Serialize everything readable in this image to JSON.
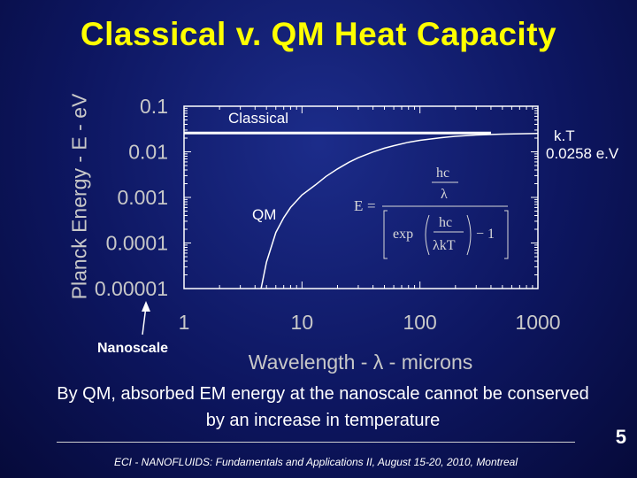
{
  "slide": {
    "title": "Classical v. QM Heat Capacity",
    "statement": "By QM, absorbed EM energy at the nanoscale cannot be conserved by an increase in temperature",
    "footer": "ECI - NANOFLUIDS: Fundamentals and Applications II, August 15-20, 2010, Montreal",
    "page_number": "5"
  },
  "colors": {
    "background": "#0d1660",
    "title": "#ffff00",
    "axis_text": "#c8c8c8",
    "curve": "#ffffff"
  },
  "chart_data": {
    "type": "line",
    "xlabel": "Wavelength - λ - microns",
    "ylabel": "Planck Energy - E - eV",
    "xscale": "log",
    "yscale": "log",
    "xlim": [
      1,
      1000
    ],
    "ylim": [
      1e-05,
      0.1
    ],
    "x_ticks": [
      "1",
      "10",
      "100",
      "1000"
    ],
    "y_ticks": [
      "0.1",
      "0.01",
      "0.001",
      "0.0001",
      "0.00001"
    ],
    "grid": false,
    "series": [
      {
        "name": "Classical",
        "x": [
          1,
          400
        ],
        "y": [
          0.0258,
          0.0258
        ]
      },
      {
        "name": "QM",
        "x": [
          4.5,
          5,
          6,
          7,
          8,
          10,
          13,
          16,
          20,
          25,
          30,
          40,
          50,
          60,
          80,
          100,
          150,
          200,
          300,
          500,
          1000
        ],
        "y": [
          1e-05,
          3.8e-05,
          0.00017,
          0.00036,
          0.0006,
          0.00113,
          0.00188,
          0.00288,
          0.00422,
          0.0059,
          0.0074,
          0.0099,
          0.012,
          0.0136,
          0.0162,
          0.0179,
          0.0204,
          0.0219,
          0.0234,
          0.0245,
          0.0252
        ]
      }
    ],
    "annotations": {
      "classical": "Classical",
      "qm": "QM",
      "kt_line1": "k.T",
      "kt_line2": "0.0258 e.V",
      "nanoscale": "Nanoscale"
    },
    "formula": {
      "lhs": "E",
      "numerator_top": "hc",
      "numerator_bottom": "λ",
      "exp": "exp",
      "inner_top": "hc",
      "inner_bottom": "λkT",
      "minus_one": "− 1"
    }
  }
}
